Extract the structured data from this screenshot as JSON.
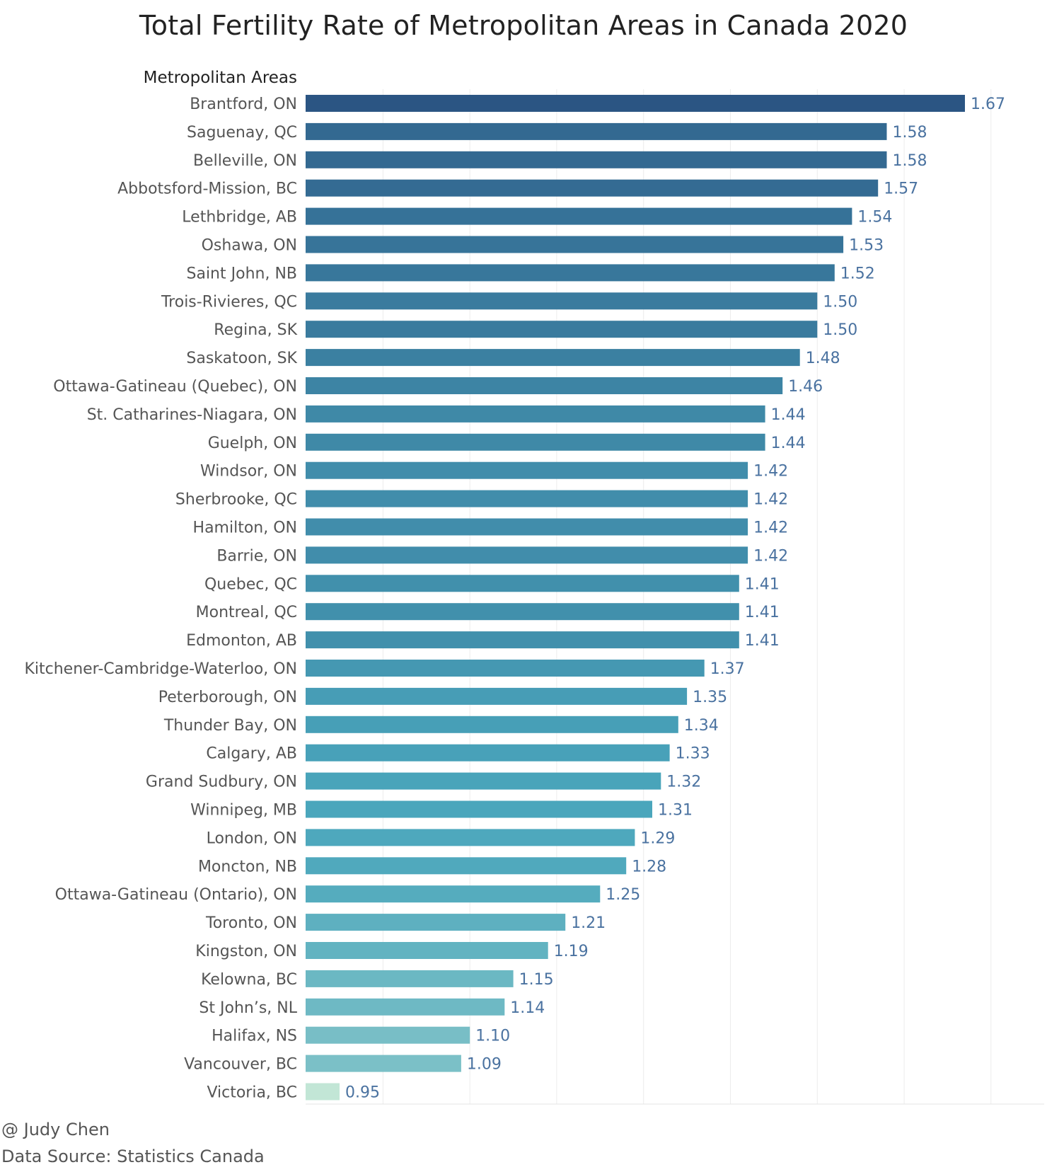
{
  "chart_data": {
    "type": "bar",
    "orientation": "horizontal",
    "title": "Total Fertility Rate of Metropolitan Areas in Canada 2020",
    "category_axis_title": "Metropolitan Areas",
    "xlim": [
      0.7,
      1.75
    ],
    "grid": "vertical",
    "categories": [
      "Brantford, ON",
      "Saguenay, QC",
      "Belleville, ON",
      "Abbotsford-Mission, BC",
      "Lethbridge, AB",
      "Oshawa, ON",
      "Saint John, NB",
      "Trois-Rivieres, QC",
      "Regina, SK",
      "Saskatoon, SK",
      "Ottawa-Gatineau (Quebec), ON",
      "St. Catharines-Niagara, ON",
      "Guelph, ON",
      "Windsor, ON",
      "Sherbrooke, QC",
      "Hamilton, ON",
      "Barrie, ON",
      "Quebec, QC",
      "Montreal, QC",
      "Edmonton, AB",
      "Kitchener-Cambridge-Waterloo, ON",
      "Peterborough, ON",
      "Thunder Bay, ON",
      "Calgary, AB",
      "Grand Sudbury, ON",
      "Winnipeg, MB",
      "London, ON",
      "Moncton, NB",
      "Ottawa-Gatineau (Ontario), ON",
      "Toronto, ON",
      "Kingston, ON",
      "Kelowna, BC",
      "St John’s, NL",
      "Halifax, NS",
      "Vancouver, BC",
      "Victoria, BC"
    ],
    "values": [
      1.67,
      1.58,
      1.58,
      1.57,
      1.54,
      1.53,
      1.52,
      1.5,
      1.5,
      1.48,
      1.46,
      1.44,
      1.44,
      1.42,
      1.42,
      1.42,
      1.42,
      1.41,
      1.41,
      1.41,
      1.37,
      1.35,
      1.34,
      1.33,
      1.32,
      1.31,
      1.29,
      1.28,
      1.25,
      1.21,
      1.19,
      1.15,
      1.14,
      1.1,
      1.09,
      0.95
    ],
    "data_labels": [
      "1.67",
      "1.58",
      "1.58",
      "1.57",
      "1.54",
      "1.53",
      "1.52",
      "1.50",
      "1.50",
      "1.48",
      "1.46",
      "1.44",
      "1.44",
      "1.42",
      "1.42",
      "1.42",
      "1.42",
      "1.41",
      "1.41",
      "1.41",
      "1.37",
      "1.35",
      "1.34",
      "1.33",
      "1.32",
      "1.31",
      "1.29",
      "1.28",
      "1.25",
      "1.21",
      "1.19",
      "1.15",
      "1.14",
      "1.10",
      "1.09",
      "0.95"
    ],
    "color_scale": {
      "low": "#c2e6d6",
      "mid": "#4aa6bc",
      "high": "#2b5583"
    },
    "label_color": "#4a72a0"
  },
  "footer": {
    "credit": "@ Judy Chen",
    "source": "Data Source: Statistics Canada"
  }
}
